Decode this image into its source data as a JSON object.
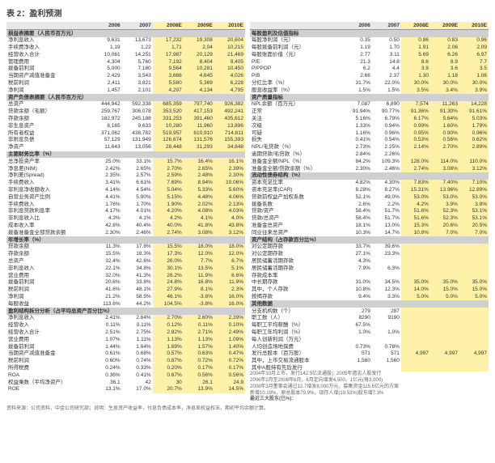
{
  "title": "表 2：盈利预测",
  "years": [
    "2006",
    "2007",
    "2008E",
    "2009E",
    "2010E"
  ],
  "hl_years": [
    "2008E",
    "2009E",
    "2010E"
  ],
  "left": [
    {
      "type": "section",
      "label": "损益表摘要（人民币百万元）"
    },
    {
      "label": "净利息收入",
      "vals": [
        "9,631",
        "13,673",
        "17,232",
        "19,308",
        "20,604"
      ]
    },
    {
      "label": "手续费净收入",
      "vals": [
        "1,19",
        "1,22",
        "1,71",
        "2,04",
        "10,215"
      ]
    },
    {
      "label": "经营收入合计",
      "vals": [
        "10,061",
        "14,251",
        "17,987",
        "20,129",
        "21,469"
      ]
    },
    {
      "label": "管理费用",
      "vals": [
        "4,304",
        "5,760",
        "7,192",
        "8,404",
        "9,405"
      ]
    },
    {
      "label": "拨备前利润",
      "vals": [
        "5,000",
        "7,180",
        "9,564",
        "10,281",
        "10,450"
      ]
    },
    {
      "label": "当期资产减值准备金",
      "vals": [
        "2,429",
        "3,543",
        "3,666",
        "4,645",
        "4,026"
      ]
    },
    {
      "label": "税前利润",
      "vals": [
        "2,411",
        "3,821",
        "5,580",
        "5,369",
        "6,228"
      ]
    },
    {
      "label": "净利润",
      "vals": [
        "1,457",
        "2,101",
        "4,297",
        "4,134",
        "4,795"
      ]
    },
    {
      "type": "section",
      "label": "资产负债表摘要（人民币百万元）"
    },
    {
      "label": "总资产",
      "vals": [
        "444,942",
        "592,338",
        "685,359",
        "797,740",
        "926,382"
      ]
    },
    {
      "label": "贷款余额（毛额）",
      "vals": [
        "259,767",
        "306,078",
        "353,520",
        "417,153",
        "492,241"
      ]
    },
    {
      "label": "存款余额",
      "vals": [
        "182,972",
        "245,188",
        "331,253",
        "391,460",
        "435,612"
      ]
    },
    {
      "label": "非生息资产",
      "vals": [
        "8,165",
        "9,633",
        "10,280",
        "11,960",
        "13,896"
      ]
    },
    {
      "label": "所有者权益",
      "vals": [
        "371,062",
        "438,782",
        "519,957",
        "610,910",
        "714,811"
      ]
    },
    {
      "label": "非附息负债",
      "vals": [
        "57,129",
        "131,949",
        "126,674",
        "131,576",
        "155,393"
      ]
    },
    {
      "label": "净资产",
      "vals": [
        "11,643",
        "13,056",
        "28,448",
        "31,293",
        "34,848"
      ]
    },
    {
      "type": "section",
      "label": "主要财务比率（%）"
    },
    {
      "label": "总净投资产率",
      "vals": [
        "25.0%",
        "33.1%",
        "15.7%",
        "16.4%",
        "16.1%"
      ]
    },
    {
      "label": "净息差(NIM)",
      "vals": [
        "2.42%",
        "2.65%",
        "2.70%",
        "2.65%",
        "2.39%"
      ]
    },
    {
      "label": "净利差(Spread)",
      "vals": [
        "2.35%",
        "2.57%",
        "2.59%",
        "2.48%",
        "2.30%"
      ]
    },
    {
      "label": "手续费收入",
      "vals": [
        "3.41%",
        "6.61%",
        "7.69%",
        "8.94%",
        "10.06%"
      ]
    },
    {
      "label": "非利息净收额收入",
      "vals": [
        "4.14%",
        "4.54%",
        "5.04%",
        "5.33%",
        "5.60%"
      ]
    },
    {
      "label": "自营业务资产比例",
      "vals": [
        "4.41%",
        "5.90%",
        "5.15%",
        "4.48%",
        "4.06%"
      ]
    },
    {
      "label": "手续费收入",
      "vals": [
        "1.76%",
        "1.70%",
        "1.90%",
        "2.02%",
        "2.13%"
      ]
    },
    {
      "label": "非利息贷款利息率",
      "vals": [
        "4.17%",
        "4.01%",
        "4.20%",
        "4.08%",
        "4.03%"
      ]
    },
    {
      "label": "非利息收入比",
      "vals": [
        "4.3%",
        "4.1%",
        "4.2%",
        "4.1%",
        "4.0%"
      ]
    },
    {
      "label": "成本收入率",
      "vals": [
        "42.8%",
        "40.4%",
        "40.0%",
        "41.8%",
        "43.8%"
      ]
    },
    {
      "label": "拨备准备金全部贷款余额",
      "vals": [
        "2.30%",
        "2.46%",
        "2.74%",
        "3.08%",
        "3.12%"
      ]
    },
    {
      "type": "section",
      "label": "年增长率（%）"
    },
    {
      "label": "贷款余额",
      "vals": [
        "11.3%",
        "17.8%",
        "15.5%",
        "18.0%",
        "18.0%"
      ]
    },
    {
      "label": "存款余额",
      "vals": [
        "15.5%",
        "18.3%",
        "17.3%",
        "12.0%",
        "12.0%"
      ]
    },
    {
      "label": "总资产",
      "vals": [
        "32.4%",
        "42.6%",
        "26.0%",
        "7.7%",
        "6.7%"
      ]
    },
    {
      "label": "非利息收入",
      "vals": [
        "22.1%",
        "34.8%",
        "30.1%",
        "13.5%",
        "5.1%"
      ]
    },
    {
      "label": "营业费用",
      "vals": [
        "32.0%",
        "41.3%",
        "26.2%",
        "11.9%",
        "6.6%"
      ]
    },
    {
      "label": "拨备前利润",
      "vals": [
        "20.6%",
        "33.8%",
        "24.8%",
        "16.8%",
        "11.9%"
      ]
    },
    {
      "label": "税前利润",
      "vals": [
        "41.6%",
        "48.1%",
        "27.9%",
        "8.1%",
        "2.3%"
      ]
    },
    {
      "label": "净利润",
      "vals": [
        "21.2%",
        "58.5%",
        "46.1%",
        "-3.8%",
        "16.0%"
      ]
    },
    {
      "label": "每股收益",
      "vals": [
        "113.6%",
        "44.2%",
        "104.5%",
        "-3.8%",
        "16.0%"
      ]
    },
    {
      "type": "section",
      "label": "盈利结构拆分分析（占平均总资产百分比%）"
    },
    {
      "label": "净利息收入",
      "vals": [
        "2.41%",
        "2.64%",
        "2.70%",
        "2.60%",
        "2.39%"
      ]
    },
    {
      "label": "经营收入",
      "vals": [
        "0.11%",
        "0.11%",
        "0.12%",
        "0.11%",
        "0.10%"
      ]
    },
    {
      "label": "经营收入合计",
      "vals": [
        "2.51%",
        "2.75%",
        "2.82%",
        "2.71%",
        "2.49%"
      ]
    },
    {
      "label": "营业费用",
      "vals": [
        "1.07%",
        "1.11%",
        "1.13%",
        "1.13%",
        "1.09%"
      ]
    },
    {
      "label": "拨备前利润",
      "vals": [
        "1.44%",
        "1.64%",
        "1.69%",
        "1.57%",
        "1.40%"
      ]
    },
    {
      "label": "当期资产减值准备金",
      "vals": [
        "0.61%",
        "0.68%",
        "0.57%",
        "0.63%",
        "0.47%"
      ]
    },
    {
      "label": "税前利润",
      "vals": [
        "0.60%",
        "0.74%",
        "0.87%",
        "0.72%",
        "0.72%"
      ]
    },
    {
      "label": "所得税费",
      "vals": [
        "0.24%",
        "0.33%",
        "0.20%",
        "0.17%",
        "0.17%"
      ]
    },
    {
      "label": "ROA",
      "vals": [
        "0.36%",
        "0.41%",
        "0.67%",
        "0.56%",
        "0.56%"
      ]
    },
    {
      "label": "权益乘数（平均净资产）",
      "vals": [
        "36.1",
        "42",
        "30",
        "26.1",
        "24.9"
      ]
    },
    {
      "label": "ROE",
      "vals": [
        "13.1%",
        "17.0%",
        "20.7%",
        "13.9%",
        "14.5%"
      ]
    }
  ],
  "right": [
    {
      "type": "section",
      "label": "每股盈利及估值指标"
    },
    {
      "label": "每股净利润（元）",
      "vals": [
        "0.35",
        "0.50",
        "0.86",
        "0.83",
        "0.96"
      ]
    },
    {
      "label": "每股拨备前利润（元）",
      "vals": [
        "1.19",
        "1.70",
        "1.91",
        "2.06",
        "2.09"
      ]
    },
    {
      "label": "每股账面价值（元）",
      "vals": [
        "2.77",
        "3.11",
        "5.69",
        "6.26",
        "6.97"
      ]
    },
    {
      "label": "P/E",
      "vals": [
        "21.3",
        "14.8",
        "8.6",
        "8.9",
        "7.7"
      ]
    },
    {
      "label": "P/PPOP",
      "vals": [
        "6.2",
        "4.4",
        "3.9",
        "3.6",
        "3.5"
      ]
    },
    {
      "label": "P/B",
      "vals": [
        "2.66",
        "2.37",
        "1.30",
        "1.18",
        "1.06"
      ]
    },
    {
      "label": "分红比率（%）",
      "vals": [
        "31.7%",
        "22.0%",
        "30.0%",
        "30.0%",
        "30.0%"
      ]
    },
    {
      "label": "股息收益率（%）",
      "vals": [
        "1.5%",
        "1.5%",
        "3.5%",
        "3.4%",
        "3.9%"
      ]
    },
    {
      "type": "section",
      "label": "资产质量指标"
    },
    {
      "label": "NPL余额（百万元）",
      "vals": [
        "7,087",
        "6,890",
        "7,574",
        "11,263",
        "14,228"
      ]
    },
    {
      "label": "正常",
      "vals": [
        "91.94%",
        "90.77%",
        "91.36%",
        "91.30%",
        "91.61%"
      ]
    },
    {
      "label": "关注",
      "vals": [
        "5.16%",
        "6.79%",
        "6.17%",
        "5.64%",
        "5.03%"
      ]
    },
    {
      "label": "次级",
      "vals": [
        "1.33%",
        "0.94%",
        "0.99%",
        "1.60%",
        "1.79%"
      ]
    },
    {
      "label": "可疑",
      "vals": [
        "1.16%",
        "0.96%",
        "0.95%",
        "0.90%",
        "0.96%"
      ]
    },
    {
      "label": "损失",
      "vals": [
        "0.41%",
        "0.54%",
        "0.53%",
        "0.56%",
        "0.62%"
      ]
    },
    {
      "label": "NPL/毛贷款（%）",
      "vals": [
        "2.73%",
        "2.25%",
        "2.14%",
        "2.70%",
        "2.89%"
      ]
    },
    {
      "label": "逾期贷款/毛贷款（%）",
      "vals": [
        "2.84%",
        "2.26%",
        "",
        "",
        ""
      ]
    },
    {
      "label": "准备金全额/NPL（%）",
      "vals": [
        "84.2%",
        "109.3%",
        "128.0%",
        "114.0%",
        "110.0%"
      ]
    },
    {
      "label": "准备金全额/贷款余额（%）",
      "vals": [
        "2.30%",
        "2.46%",
        "2.74%",
        "3.08%",
        "3.12%"
      ]
    },
    {
      "type": "section",
      "label": "流动性债券结构（%）"
    },
    {
      "label": "资本充足比率",
      "vals": [
        "4.82%",
        "4.30%",
        "7.83%",
        "7.40%",
        "7.10%"
      ]
    },
    {
      "label": "资本充足率(CAR)",
      "vals": [
        "8.28%",
        "8.27%",
        "15.31%",
        "13.96%",
        "12.89%"
      ]
    },
    {
      "label": "贷款前权益产加权系数",
      "vals": [
        "52.1%",
        "49.0%",
        "53.0%",
        "53.0%",
        "53.0%"
      ]
    },
    {
      "label": "拨备系数",
      "vals": [
        "2.6%",
        "2.2%",
        "4.2%",
        "3.9%",
        "3.8%"
      ]
    },
    {
      "label": "贷款/资产",
      "vals": [
        "58.4%",
        "51.7%",
        "51.6%",
        "52.3%",
        "53.1%"
      ]
    },
    {
      "label": "贷款/总资产",
      "vals": [
        "58.4%",
        "51.7%",
        "51.6%",
        "52.3%",
        "53.1%"
      ]
    },
    {
      "label": "准备金总资产",
      "vals": [
        "18.1%",
        "13.0%",
        "15.3%",
        "20.6%",
        "20.5%"
      ]
    },
    {
      "label": "同业往来总资产",
      "vals": [
        "10.3%",
        "14.7%",
        "10.8%",
        "7.0%",
        "7.0%"
      ]
    },
    {
      "type": "section",
      "label": "资产结构（占存款百分比%）"
    },
    {
      "label": "对公定期存款",
      "vals": [
        "33.7%",
        "39.6%",
        "",
        "",
        ""
      ]
    },
    {
      "label": "对公定期存款",
      "vals": [
        "27.1%",
        "23.3%",
        "",
        "",
        ""
      ]
    },
    {
      "label": "居民储蓄活期存款",
      "vals": [
        "4.3%",
        "",
        "",
        "",
        ""
      ]
    },
    {
      "label": "居民储蓄活期存款",
      "vals": [
        "7.9%",
        "6.3%",
        "",
        "",
        ""
      ]
    },
    {
      "label": "存款成本率",
      "vals": [
        "",
        "",
        "",
        "",
        ""
      ]
    },
    {
      "label": "中长期存款",
      "vals": [
        "31.0%",
        "34.5%",
        "35.0%",
        "35.0%",
        "35.0%"
      ]
    },
    {
      "label": "其中，个人存款",
      "vals": [
        "10.8%",
        "12.3%",
        "14.0%",
        "15.0%",
        "15.0%"
      ]
    },
    {
      "label": "按揭存款",
      "vals": [
        "9.4%",
        "3.3%",
        "5.0%",
        "5.0%",
        "5.0%"
      ]
    },
    {
      "type": "section",
      "label": "其他数据"
    },
    {
      "label": "分支机构数（个）",
      "vals": [
        "279",
        "287",
        "",
        "",
        ""
      ]
    },
    {
      "label": "职工数（人）",
      "vals": [
        "8290",
        "9190",
        "",
        "",
        ""
      ]
    },
    {
      "label": "每职工平均薪酬（%）",
      "vals": [
        "67.5%",
        "",
        "",
        "",
        ""
      ]
    },
    {
      "label": "每职工年均利润（%）",
      "vals": [
        "1.0%",
        "1.0%",
        "",
        "",
        ""
      ]
    },
    {
      "label": "每人创新利润（万元）",
      "vals": [
        "",
        "",
        "",
        "",
        ""
      ]
    },
    {
      "label": "人均创造场地保费",
      "vals": [
        "0.73%",
        "0.78%",
        "",
        "",
        ""
      ]
    },
    {
      "label": "发行总股本（百万股）",
      "vals": [
        "571",
        "571",
        "4,997",
        "4,997",
        "4,997"
      ]
    },
    {
      "label": "其中，上市交易流通股本",
      "vals": [
        "1,560",
        "1,560",
        "",
        "",
        ""
      ]
    },
    {
      "label": "其中А股持有先后发行",
      "vals": [
        "",
        "",
        "",
        "",
        ""
      ]
    }
  ],
  "notes": [
    "2004年10月上市，发行142.5亿流通股；2005年遗志人股发行",
    "2006年2月至2008年6月，6月定向增发4,500，1亿元(每3,000)",
    "2008年3月董事会通过12.7增发8,000万元，募集资金115.6亿元的方案",
    "新增10.19%，原总股本79.9%，现存人增(19.53%)股东增7.3%"
  ],
  "footnote_label": "最近三大股东(已%)：",
  "footer": "资料来源：公司资料、中金公司研究部；说明：生息资产收益率，付息负债成本率，净息差权益权末，期初平均余额计算。"
}
